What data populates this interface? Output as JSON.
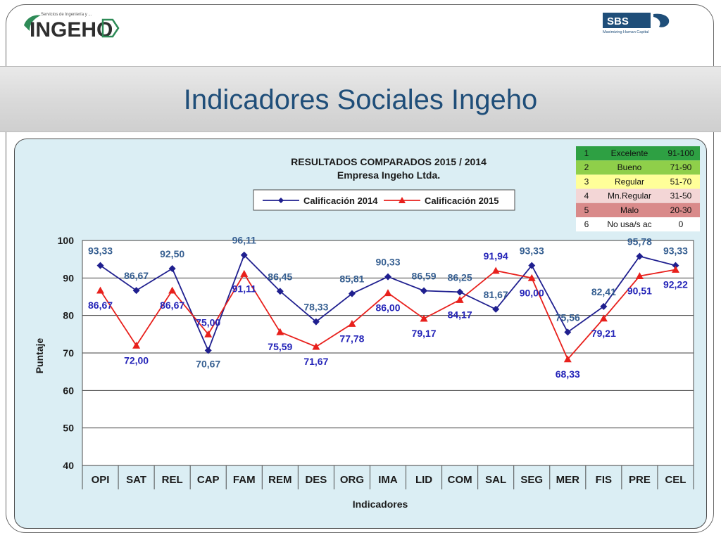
{
  "header": {
    "title": "Indicadores Sociales  Ingeho",
    "logo_left": {
      "name": "INGEHO",
      "tagline": "Servicios de Ingeniería y ..."
    },
    "logo_right": {
      "name": "SBS",
      "tagline": "Maximizing Human Capital"
    }
  },
  "chart_data": {
    "type": "line",
    "title": "RESULTADOS COMPARADOS 2015 / 2014",
    "subtitle": "Empresa  Ingeho Ltda.",
    "xlabel": "Indicadores",
    "ylabel": "Puntaje",
    "ylim": [
      40,
      100
    ],
    "yticks": [
      "40",
      "50",
      "60",
      "70",
      "80",
      "90",
      "100"
    ],
    "grid": true,
    "legend_position": "top-center",
    "categories": [
      "OPI",
      "SAT",
      "REL",
      "CAP",
      "FAM",
      "REM",
      "DES",
      "ORG",
      "IMA",
      "LID",
      "COM",
      "SAL",
      "SEG",
      "MER",
      "FIS",
      "PRE",
      "CEL"
    ],
    "series": [
      {
        "name": "Calificación 2014",
        "color": "#1f1f8f",
        "marker": "diamond",
        "values": [
          93.33,
          86.67,
          92.5,
          70.67,
          96.11,
          86.45,
          78.33,
          85.81,
          90.33,
          86.59,
          86.25,
          81.67,
          93.33,
          75.56,
          82.41,
          95.78,
          93.33
        ],
        "labels": [
          "93,33",
          "86,67",
          "92,50",
          "70,67",
          "96,11",
          "86,45",
          "78,33",
          "85,81",
          "90,33",
          "86,59",
          "86,25",
          "81,67",
          "93,33",
          "75,56",
          "82,41",
          "95,78",
          "93,33"
        ]
      },
      {
        "name": "Calificación 2015",
        "color": "#e8201c",
        "marker": "triangle",
        "values": [
          86.67,
          72.0,
          86.67,
          75.0,
          91.11,
          75.59,
          71.67,
          77.78,
          86.0,
          79.17,
          84.17,
          91.94,
          90.0,
          68.33,
          79.21,
          90.51,
          92.22
        ],
        "labels": [
          "86,67",
          "72,00",
          "86,67",
          "75,00",
          "91,11",
          "75,59",
          "71,67",
          "77,78",
          "86,00",
          "79,17",
          "84,17",
          "91,94",
          "90,00",
          "68,33",
          "79,21",
          "90,51",
          "92,22"
        ]
      }
    ],
    "scale_table": [
      {
        "n": "1",
        "label": "Excelente",
        "range": "91-100",
        "color": "#2ea043"
      },
      {
        "n": "2",
        "label": "Bueno",
        "range": "71-90",
        "color": "#8fcf4a"
      },
      {
        "n": "3",
        "label": "Regular",
        "range": "51-70",
        "color": "#ffff99"
      },
      {
        "n": "4",
        "label": "Mn.Regular",
        "range": "31-50",
        "color": "#f3d6d6"
      },
      {
        "n": "5",
        "label": "Malo",
        "range": "20-30",
        "color": "#d98a8a"
      },
      {
        "n": "6",
        "label": "No usa/s ac",
        "range": "0",
        "color": "#ffffff"
      }
    ]
  }
}
